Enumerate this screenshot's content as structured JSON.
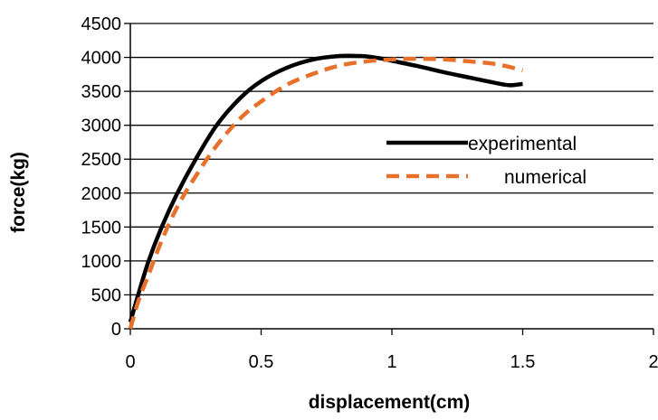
{
  "chart_data": {
    "type": "line",
    "title": "",
    "xlabel": "displacement(cm)",
    "ylabel": "force(kg)",
    "xlim": [
      0,
      2
    ],
    "ylim": [
      0,
      4500
    ],
    "x_ticks": [
      "0",
      "0.5",
      "1",
      "1.5",
      "2"
    ],
    "y_ticks": [
      "0",
      "500",
      "1000",
      "1500",
      "2000",
      "2500",
      "3000",
      "3500",
      "4000",
      "4500"
    ],
    "grid": "horizontal",
    "legend_position": "right",
    "series": [
      {
        "name": "experimental",
        "color": "#000000",
        "style": "solid",
        "points": [
          [
            0.0,
            100
          ],
          [
            0.03,
            500
          ],
          [
            0.07,
            1000
          ],
          [
            0.12,
            1500
          ],
          [
            0.18,
            2000
          ],
          [
            0.25,
            2500
          ],
          [
            0.33,
            3000
          ],
          [
            0.42,
            3400
          ],
          [
            0.5,
            3650
          ],
          [
            0.6,
            3850
          ],
          [
            0.7,
            3970
          ],
          [
            0.8,
            4020
          ],
          [
            0.88,
            4020
          ],
          [
            0.95,
            3990
          ],
          [
            1.0,
            3950
          ],
          [
            1.1,
            3870
          ],
          [
            1.2,
            3780
          ],
          [
            1.3,
            3700
          ],
          [
            1.4,
            3620
          ],
          [
            1.45,
            3590
          ],
          [
            1.5,
            3610
          ]
        ]
      },
      {
        "name": "numerical",
        "color": "#E8702A",
        "style": "dashed",
        "points": [
          [
            0.0,
            0
          ],
          [
            0.03,
            400
          ],
          [
            0.07,
            800
          ],
          [
            0.12,
            1300
          ],
          [
            0.18,
            1800
          ],
          [
            0.25,
            2250
          ],
          [
            0.33,
            2700
          ],
          [
            0.42,
            3100
          ],
          [
            0.5,
            3350
          ],
          [
            0.6,
            3600
          ],
          [
            0.7,
            3760
          ],
          [
            0.8,
            3880
          ],
          [
            0.9,
            3940
          ],
          [
            1.0,
            3970
          ],
          [
            1.1,
            3980
          ],
          [
            1.2,
            3970
          ],
          [
            1.3,
            3940
          ],
          [
            1.4,
            3900
          ],
          [
            1.5,
            3810
          ]
        ]
      }
    ]
  },
  "colors": {
    "axis": "#000000",
    "grid": "#000000"
  }
}
